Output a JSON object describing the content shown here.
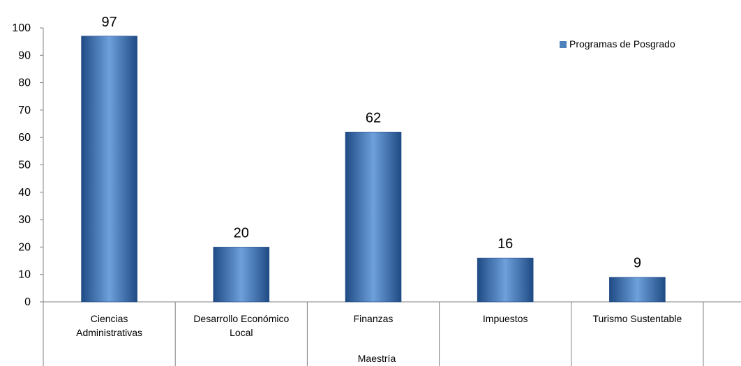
{
  "chart_data": {
    "type": "bar",
    "categories": [
      "Ciencias Administrativas",
      "Desarrollo Económico Local",
      "Finanzas",
      "Impuestos",
      "Turismo Sustentable"
    ],
    "category_lines": [
      [
        "Ciencias",
        "Administrativas"
      ],
      [
        "Desarrollo Económico",
        "Local"
      ],
      [
        "Finanzas"
      ],
      [
        "Impuestos"
      ],
      [
        "Turismo Sustentable"
      ]
    ],
    "series": [
      {
        "name": "Programas de Posgrado",
        "values": [
          97,
          20,
          62,
          16,
          9
        ]
      }
    ],
    "group_label": "Maestría",
    "ylim": [
      0,
      100
    ],
    "yticks": [
      0,
      10,
      20,
      30,
      40,
      50,
      60,
      70,
      80,
      90,
      100
    ],
    "legend_position": "top-right",
    "grid": false,
    "data_labels": true,
    "colors": {
      "bar_edge": "#1f4b84",
      "bar_mid": "#6ea0dc",
      "legend_swatch": "#4f81bd",
      "axis": "#808080"
    }
  }
}
